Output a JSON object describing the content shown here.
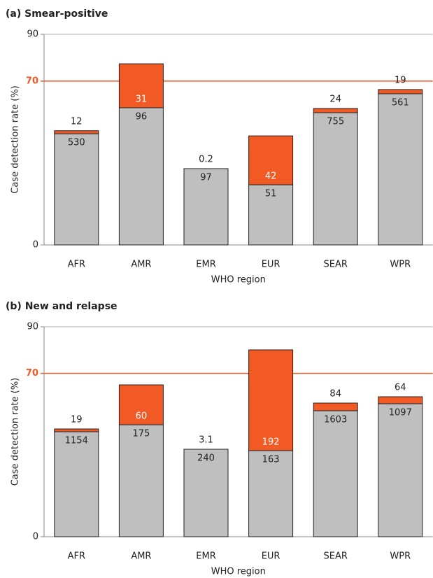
{
  "chart_data": [
    {
      "type": "bar",
      "stacked": true,
      "title": "(a) Smear-positive",
      "x_label": "WHO region",
      "y_label": "Case detection rate (%)",
      "categories": [
        "AFR",
        "AMR",
        "EMR",
        "EUR",
        "SEAR",
        "WPR"
      ],
      "series": [
        {
          "color": "#bfbfbf",
          "values": [
            47.5,
            58.6,
            32.6,
            25.7,
            56.5,
            64.6
          ],
          "annotations": [
            530,
            96,
            97,
            51,
            755,
            561
          ]
        },
        {
          "color": "#f15a24",
          "values": [
            1.3,
            18.8,
            0,
            20.9,
            1.8,
            1.8
          ],
          "annotations": [
            12,
            31,
            0.2,
            42,
            24,
            19
          ]
        }
      ],
      "ylim": [
        0,
        90
      ],
      "yticks": [
        0,
        90
      ],
      "reference_line": 70,
      "reference_color": "#f15a24"
    },
    {
      "type": "bar",
      "stacked": true,
      "title": "(b) New and relapse",
      "x_label": "WHO region",
      "y_label": "Case detection rate (%)",
      "categories": [
        "AFR",
        "AMR",
        "EMR",
        "EUR",
        "SEAR",
        "WPR"
      ],
      "series": [
        {
          "color": "#bfbfbf",
          "values": [
            45.0,
            48.0,
            37.5,
            36.9,
            54.0,
            57.0
          ],
          "annotations": [
            1154,
            175,
            240,
            163,
            1603,
            1097
          ]
        },
        {
          "color": "#f15a24",
          "values": [
            1.2,
            17.1,
            0,
            43.2,
            3.3,
            3.0
          ],
          "annotations": [
            19,
            60,
            3.1,
            192,
            84,
            64
          ]
        }
      ],
      "ylim": [
        0,
        90
      ],
      "yticks": [
        0,
        90
      ],
      "reference_line": 70,
      "reference_color": "#f15a24"
    }
  ]
}
